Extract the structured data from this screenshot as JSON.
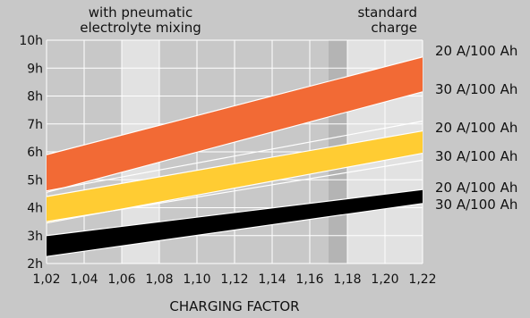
{
  "chart_data": {
    "type": "area",
    "title": "",
    "xlabel": "CHARGING FACTOR",
    "ylabel": "",
    "xlim": [
      1.02,
      1.22
    ],
    "ylim": [
      2,
      10
    ],
    "x_ticks": [
      "1,02",
      "1,04",
      "1,06",
      "1,08",
      "1,10",
      "1,12",
      "1,14",
      "1,16",
      "1,18",
      "1,20",
      "1,22"
    ],
    "y_ticks": [
      "2h",
      "3h",
      "4h",
      "5h",
      "6h",
      "7h",
      "8h",
      "9h",
      "10h"
    ],
    "grid": true,
    "region_labels": [
      {
        "lines": [
          "with pneumatic",
          "electrolyte mixing"
        ],
        "x_range": [
          1.06,
          1.08
        ]
      },
      {
        "lines": [
          "standard",
          "charge"
        ],
        "x_range": [
          1.17,
          1.22
        ]
      }
    ],
    "shaded_regions": [
      {
        "x_range": [
          1.06,
          1.08
        ],
        "color": "#e2e2e2"
      },
      {
        "x_range": [
          1.17,
          1.18
        ],
        "color": "#b4b4b4"
      },
      {
        "x_range": [
          1.18,
          1.22
        ],
        "color": "#e2e2e2"
      }
    ],
    "series": [
      {
        "band": "orange",
        "color": "#f26a35",
        "x": [
          1.02,
          1.22
        ],
        "upper": [
          5.9,
          9.4
        ],
        "lower": [
          4.55,
          8.15
        ],
        "upper_label": "20 A/100 Ah",
        "lower_label": "30 A/100 Ah"
      },
      {
        "band": "yellow",
        "color": "#ffcc33",
        "x": [
          1.02,
          1.22
        ],
        "upper": [
          4.4,
          6.75
        ],
        "lower": [
          3.45,
          5.95
        ],
        "upper_label": "20 A/100 Ah",
        "lower_label": "30 A/100 Ah"
      },
      {
        "band": "black",
        "color": "#000000",
        "x": [
          1.02,
          1.22
        ],
        "upper": [
          3.0,
          4.65
        ],
        "lower": [
          2.25,
          4.15
        ],
        "upper_label": "20 A/100 Ah",
        "lower_label": "30 A/100 Ah"
      }
    ],
    "extra_lines": [
      {
        "x": [
          1.02,
          1.22
        ],
        "y": [
          4.6,
          7.1
        ],
        "color": "#ffffff"
      },
      {
        "x": [
          1.02,
          1.22
        ],
        "y": [
          3.5,
          5.7
        ],
        "color": "#ffffff"
      }
    ]
  }
}
